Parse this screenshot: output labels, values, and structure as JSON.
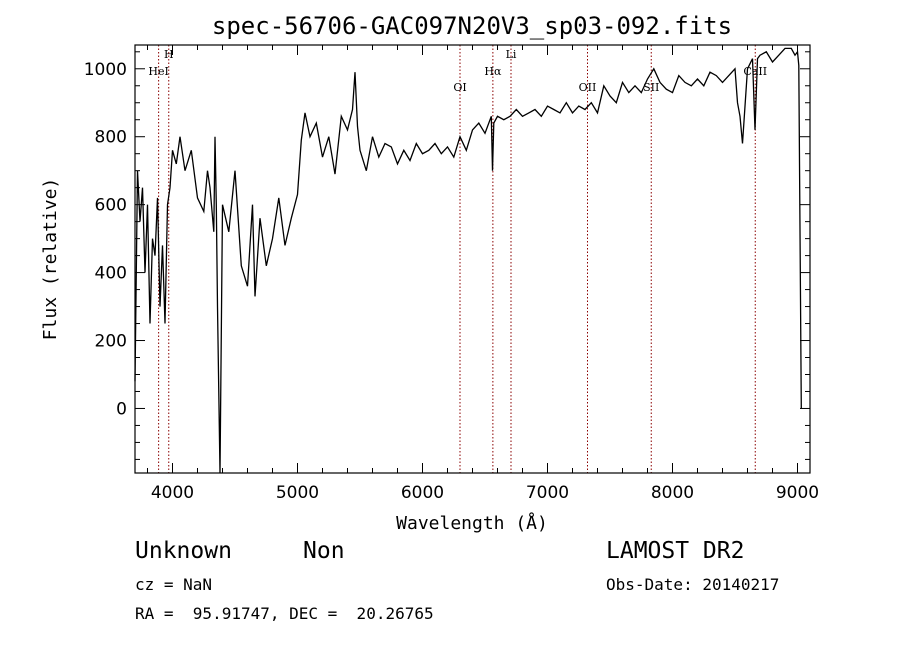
{
  "chart_data": {
    "type": "line",
    "title": "spec-56706-GAC097N20V3_sp03-092.fits",
    "xlabel": "Wavelength (Å)",
    "ylabel": "Flux (relative)",
    "xlim": [
      3700,
      9100
    ],
    "ylim": [
      -190,
      1070
    ],
    "xticks": [
      4000,
      5000,
      6000,
      7000,
      8000,
      9000
    ],
    "yticks": [
      0,
      200,
      400,
      600,
      800,
      1000
    ],
    "grid": false,
    "line_color": "#000000",
    "marker_color": "#8b0000",
    "lines": [
      {
        "label": "HeI",
        "x": 3889
      },
      {
        "label": "H",
        "x": 3970
      },
      {
        "label": "OI",
        "x": 6300
      },
      {
        "label": "Hα",
        "x": 6563
      },
      {
        "label": "Li",
        "x": 6708
      },
      {
        "label": "OII",
        "x": 7320
      },
      {
        "label": "SII",
        "x": 7830
      },
      {
        "label": "CaII",
        "x": 8662
      }
    ],
    "series": [
      {
        "x": [
          3700,
          3720,
          3740,
          3760,
          3780,
          3800,
          3820,
          3840,
          3860,
          3880,
          3900,
          3920,
          3940,
          3960,
          3980,
          4000,
          4030,
          4060,
          4100,
          4150,
          4200,
          4250,
          4280,
          4300,
          4330,
          4340,
          4350,
          4360,
          4380,
          4400,
          4450,
          4500,
          4550,
          4600,
          4640,
          4660,
          4700,
          4750,
          4800,
          4850,
          4900,
          4950,
          5000,
          5030,
          5060,
          5100,
          5150,
          5200,
          5250,
          5300,
          5350,
          5400,
          5440,
          5460,
          5480,
          5500,
          5550,
          5600,
          5650,
          5700,
          5750,
          5800,
          5850,
          5900,
          5950,
          6000,
          6050,
          6100,
          6150,
          6200,
          6250,
          6300,
          6350,
          6400,
          6450,
          6500,
          6550,
          6560,
          6570,
          6600,
          6650,
          6700,
          6750,
          6800,
          6850,
          6900,
          6950,
          7000,
          7050,
          7100,
          7150,
          7200,
          7250,
          7300,
          7350,
          7400,
          7450,
          7500,
          7550,
          7600,
          7650,
          7700,
          7750,
          7800,
          7850,
          7900,
          7950,
          8000,
          8050,
          8100,
          8150,
          8200,
          8250,
          8300,
          8350,
          8400,
          8450,
          8500,
          8520,
          8540,
          8560,
          8600,
          8640,
          8660,
          8680,
          8700,
          8750,
          8800,
          8850,
          8900,
          8950,
          8980,
          9000,
          9010,
          9030
        ],
        "y": [
          80,
          700,
          550,
          650,
          400,
          600,
          250,
          500,
          450,
          620,
          300,
          480,
          250,
          600,
          650,
          760,
          720,
          800,
          700,
          760,
          620,
          580,
          700,
          650,
          520,
          800,
          600,
          300,
          -190,
          600,
          520,
          700,
          420,
          360,
          600,
          330,
          560,
          420,
          500,
          620,
          480,
          560,
          630,
          790,
          870,
          800,
          840,
          740,
          800,
          690,
          860,
          820,
          880,
          990,
          830,
          760,
          700,
          800,
          740,
          780,
          770,
          720,
          760,
          730,
          780,
          750,
          760,
          780,
          750,
          770,
          740,
          800,
          760,
          820,
          840,
          810,
          860,
          700,
          840,
          860,
          850,
          860,
          880,
          860,
          870,
          880,
          860,
          890,
          880,
          870,
          900,
          870,
          890,
          880,
          900,
          870,
          950,
          920,
          900,
          960,
          930,
          950,
          930,
          970,
          1000,
          960,
          940,
          930,
          980,
          960,
          950,
          970,
          950,
          990,
          980,
          960,
          980,
          1000,
          900,
          860,
          780,
          1000,
          1030,
          820,
          1030,
          1040,
          1050,
          1020,
          1040,
          1060,
          1060,
          1040,
          1050,
          1010,
          0
        ]
      }
    ]
  },
  "footer": {
    "object_class": "Unknown",
    "object_subclass": "Non",
    "cz": "cz = NaN",
    "radec": "RA =  95.91747, DEC =  20.26765",
    "survey": "LAMOST DR2",
    "obs_date": "Obs-Date: 20140217"
  }
}
